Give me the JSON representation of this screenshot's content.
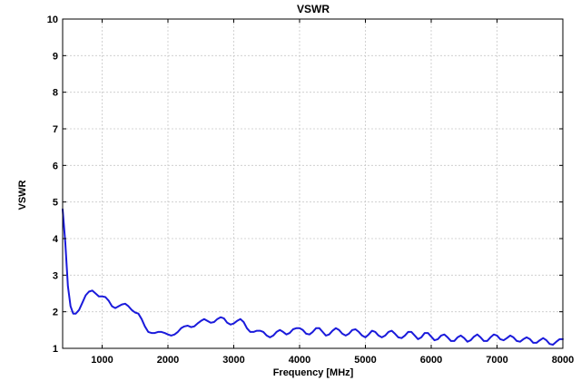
{
  "chart_data": {
    "type": "line",
    "title": "VSWR",
    "xlabel": "Frequency [MHz]",
    "ylabel": "VSWR",
    "xlim": [
      400,
      8000
    ],
    "ylim": [
      1,
      10
    ],
    "xticks": [
      1000,
      2000,
      3000,
      4000,
      5000,
      6000,
      7000,
      8000
    ],
    "yticks": [
      1,
      2,
      3,
      4,
      5,
      6,
      7,
      8,
      9,
      10
    ],
    "grid": true,
    "series": [
      {
        "color": "#1a1adb",
        "x": [
          400,
          440,
          480,
          520,
          560,
          600,
          650,
          700,
          750,
          800,
          850,
          900,
          950,
          1000,
          1050,
          1100,
          1150,
          1200,
          1250,
          1300,
          1350,
          1400,
          1450,
          1500,
          1550,
          1600,
          1650,
          1700,
          1750,
          1800,
          1850,
          1900,
          1950,
          2000,
          2050,
          2100,
          2150,
          2200,
          2250,
          2300,
          2350,
          2400,
          2450,
          2500,
          2550,
          2600,
          2650,
          2700,
          2750,
          2800,
          2850,
          2900,
          2950,
          3000,
          3050,
          3100,
          3150,
          3200,
          3250,
          3300,
          3350,
          3400,
          3450,
          3500,
          3550,
          3600,
          3650,
          3700,
          3750,
          3800,
          3850,
          3900,
          3950,
          4000,
          4050,
          4100,
          4150,
          4200,
          4250,
          4300,
          4350,
          4400,
          4450,
          4500,
          4550,
          4600,
          4650,
          4700,
          4750,
          4800,
          4850,
          4900,
          4950,
          5000,
          5050,
          5100,
          5150,
          5200,
          5250,
          5300,
          5350,
          5400,
          5450,
          5500,
          5550,
          5600,
          5650,
          5700,
          5750,
          5800,
          5850,
          5900,
          5950,
          6000,
          6050,
          6100,
          6150,
          6200,
          6250,
          6300,
          6350,
          6400,
          6450,
          6500,
          6550,
          6600,
          6650,
          6700,
          6750,
          6800,
          6850,
          6900,
          6950,
          7000,
          7050,
          7100,
          7150,
          7200,
          7250,
          7300,
          7350,
          7400,
          7450,
          7500,
          7550,
          7600,
          7650,
          7700,
          7750,
          7800,
          7850,
          7900,
          7950,
          8000
        ],
        "y": [
          4.8,
          3.9,
          2.7,
          2.15,
          1.95,
          1.95,
          2.05,
          2.25,
          2.45,
          2.55,
          2.58,
          2.5,
          2.42,
          2.42,
          2.4,
          2.3,
          2.15,
          2.1,
          2.15,
          2.2,
          2.22,
          2.15,
          2.05,
          1.98,
          1.95,
          1.8,
          1.6,
          1.45,
          1.42,
          1.42,
          1.45,
          1.45,
          1.42,
          1.38,
          1.35,
          1.38,
          1.45,
          1.55,
          1.6,
          1.62,
          1.58,
          1.6,
          1.68,
          1.75,
          1.8,
          1.75,
          1.7,
          1.72,
          1.8,
          1.85,
          1.82,
          1.7,
          1.65,
          1.68,
          1.75,
          1.8,
          1.72,
          1.55,
          1.45,
          1.45,
          1.48,
          1.48,
          1.45,
          1.35,
          1.3,
          1.35,
          1.45,
          1.5,
          1.45,
          1.38,
          1.42,
          1.52,
          1.55,
          1.55,
          1.5,
          1.4,
          1.38,
          1.45,
          1.55,
          1.55,
          1.45,
          1.35,
          1.38,
          1.48,
          1.55,
          1.5,
          1.4,
          1.35,
          1.4,
          1.5,
          1.52,
          1.45,
          1.35,
          1.3,
          1.38,
          1.48,
          1.45,
          1.35,
          1.3,
          1.35,
          1.45,
          1.48,
          1.4,
          1.3,
          1.28,
          1.35,
          1.45,
          1.45,
          1.35,
          1.25,
          1.3,
          1.42,
          1.42,
          1.32,
          1.22,
          1.25,
          1.35,
          1.38,
          1.3,
          1.2,
          1.2,
          1.3,
          1.35,
          1.28,
          1.18,
          1.22,
          1.32,
          1.38,
          1.3,
          1.2,
          1.2,
          1.3,
          1.38,
          1.35,
          1.25,
          1.22,
          1.28,
          1.35,
          1.3,
          1.2,
          1.18,
          1.25,
          1.3,
          1.25,
          1.15,
          1.15,
          1.22,
          1.28,
          1.22,
          1.12,
          1.1,
          1.18,
          1.25,
          1.25
        ]
      }
    ]
  }
}
